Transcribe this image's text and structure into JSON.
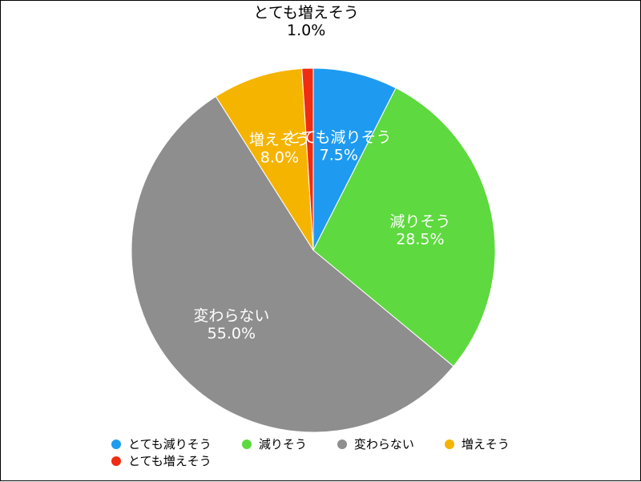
{
  "chart_data": {
    "type": "pie",
    "slices": [
      {
        "label": "とても減りそう",
        "value": 7.5,
        "value_label": "7.5%",
        "color": "#1E9BF0"
      },
      {
        "label": "減りそう",
        "value": 28.5,
        "value_label": "28.5%",
        "color": "#5ED93F"
      },
      {
        "label": "変わらない",
        "value": 55.0,
        "value_label": "55.0%",
        "color": "#8E8E8E"
      },
      {
        "label": "増えそう",
        "value": 8.0,
        "value_label": "8.0%",
        "color": "#F5B400"
      },
      {
        "label": "とても増えそう",
        "value": 1.0,
        "value_label": "1.0%",
        "color": "#F02C12"
      }
    ],
    "start_angle": "12 o'clock",
    "direction": "clockwise",
    "legend": "bottom",
    "outside_labels": [
      "とても増えそう"
    ]
  }
}
